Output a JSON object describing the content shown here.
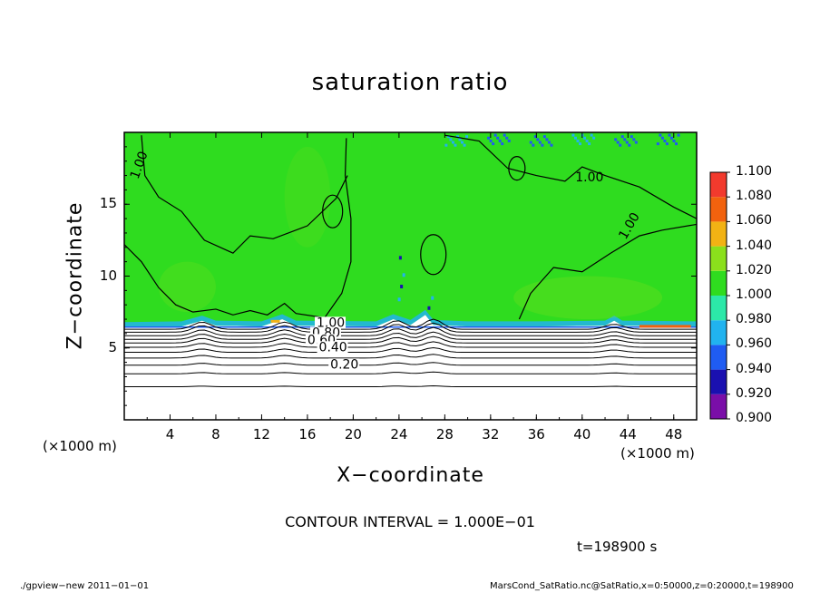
{
  "chart_data": {
    "type": "heatmap",
    "title": "saturation ratio",
    "xlabel": "X−coordinate",
    "ylabel": "Z−coordinate",
    "x_unit_left": "(×1000 m)",
    "x_unit_right": "(×1000 m)",
    "xlim": [
      0,
      50
    ],
    "ylim": [
      0,
      20
    ],
    "x_ticks": [
      4,
      8,
      12,
      16,
      20,
      24,
      28,
      32,
      36,
      40,
      44,
      48
    ],
    "x_tick_labels": [
      "4",
      "8",
      "12",
      "16",
      "20",
      "24",
      "28",
      "32",
      "36",
      "40",
      "44",
      "48"
    ],
    "y_ticks": [
      5,
      10,
      15
    ],
    "y_tick_labels": [
      "5",
      "10",
      "15"
    ],
    "colorbar": {
      "levels": [
        0.9,
        0.92,
        0.94,
        0.96,
        0.98,
        1.0,
        1.02,
        1.04,
        1.06,
        1.08,
        1.1
      ],
      "labels": [
        "0.900",
        "0.920",
        "0.940",
        "0.960",
        "0.980",
        "1.000",
        "1.020",
        "1.040",
        "1.060",
        "1.080",
        "1.100"
      ],
      "colors": [
        "#7a0ea8",
        "#1a10b0",
        "#1f5cf2",
        "#21b3ef",
        "#2ce8a8",
        "#2fdc1f",
        "#8be01c",
        "#f2b214",
        "#f2620e",
        "#f23a2d",
        "#f7a8a0"
      ]
    },
    "contours": [
      {
        "label": "1.00",
        "z_approx": 6.5
      },
      {
        "label": "0.80",
        "z_approx": 6.0
      },
      {
        "label": "0.60",
        "z_approx": 5.5
      },
      {
        "label": "0.40",
        "z_approx": 5.0
      },
      {
        "label": "0.20",
        "z_approx": 3.8
      }
    ],
    "contour_interval": "CONTOUR INTERVAL = 1.000E−01",
    "fill_region": {
      "z_min": 6.4,
      "z_max": 20,
      "dominant_value": 1.0
    }
  },
  "annotations": {
    "time": "t=198900  s",
    "footer_left": "./gpview−new   2011−01−01",
    "footer_right": "MarsCond_SatRatio.nc@SatRatio,x=0:50000,z=0:20000,t=198900"
  }
}
